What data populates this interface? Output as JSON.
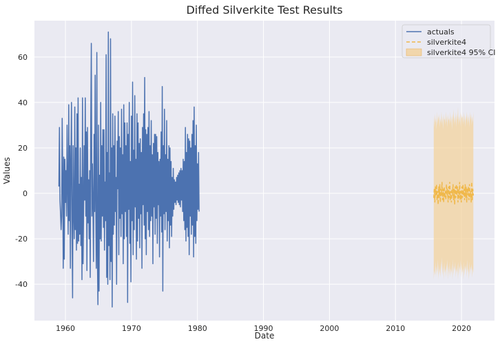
{
  "chart_data": {
    "type": "line",
    "title": "Diffed Silverkite Test Results",
    "xlabel": "Date",
    "ylabel": "Values",
    "xlim": [
      1955.3,
      2025.0
    ],
    "ylim": [
      -56,
      76
    ],
    "x_ticks": [
      1960,
      1970,
      1980,
      1990,
      2000,
      2010,
      2020
    ],
    "y_ticks": [
      -40,
      -20,
      0,
      20,
      40,
      60
    ],
    "grid": true,
    "legend_placement": "top-right",
    "colors": {
      "plot_background": "#EAEAF2",
      "grid": "#FFFFFF",
      "actuals": "#4C72B0",
      "forecast": "#F0B84A",
      "ci_fill": "#F3D199"
    },
    "series": [
      {
        "name": "actuals",
        "style": "solid",
        "start_year": 1959.0,
        "step_years": 0.0833333,
        "values": [
          3,
          29,
          -3,
          -9,
          -16,
          -10,
          33,
          5,
          -33,
          16,
          -29,
          15,
          -4,
          10,
          -10,
          30,
          2,
          -18,
          39,
          -12,
          21,
          -33,
          15,
          40,
          -16,
          -46,
          21,
          -8,
          -20,
          38,
          -16,
          20,
          -25,
          35,
          -22,
          42,
          -21,
          4,
          -18,
          20,
          -23,
          7,
          -38,
          42,
          -31,
          -8,
          21,
          -3,
          42,
          -10,
          27,
          -34,
          29,
          -13,
          6,
          -20,
          10,
          -37,
          32,
          66,
          -10,
          13,
          -6,
          -30,
          26,
          -8,
          52,
          -5,
          -33,
          62,
          -27,
          -49,
          30,
          -43,
          8,
          -20,
          40,
          -21,
          21,
          -10,
          28,
          -15,
          28,
          -25,
          5,
          -12,
          61,
          -37,
          18,
          -40,
          71,
          -23,
          9,
          -38,
          68,
          -30,
          20,
          -50,
          35,
          -18,
          21,
          -14,
          34,
          -8,
          7,
          -40,
          23,
          2,
          36,
          -27,
          25,
          -11,
          20,
          -19,
          37,
          -9,
          17,
          -31,
          39,
          -20,
          31,
          -8,
          21,
          -19,
          31,
          -48,
          26,
          -7,
          40,
          -22,
          14,
          -39,
          34,
          -12,
          49,
          -27,
          19,
          -16,
          43,
          -6,
          15,
          -29,
          35,
          -21,
          31,
          -11,
          22,
          -24,
          24,
          -9,
          18,
          -33,
          29,
          -5,
          35,
          -14,
          51,
          -20,
          28,
          -27,
          26,
          -8,
          29,
          -16,
          36,
          -19,
          21,
          -12,
          32,
          -10,
          17,
          -31,
          22,
          -6,
          26,
          -18,
          26,
          -11,
          25,
          -22,
          18,
          -5,
          14,
          -28,
          15,
          -10,
          27,
          -17,
          47,
          -43,
          21,
          -9,
          37,
          -16,
          17,
          -8,
          32,
          -21,
          15,
          -12,
          21,
          -24,
          20,
          -14,
          14,
          -19,
          7,
          -10,
          11,
          -7,
          6,
          -4,
          5,
          -5,
          7,
          -3,
          8,
          -4,
          9,
          -5,
          10,
          -6,
          11,
          -3,
          10,
          -8,
          15,
          -12,
          14,
          -16,
          29,
          -21,
          18,
          -15,
          26,
          -19,
          24,
          -27,
          23,
          -10,
          20,
          -18,
          26,
          -14,
          32,
          -28,
          38,
          -19,
          21,
          -22,
          30,
          -12,
          13,
          -7,
          18,
          -8
        ]
      },
      {
        "name": "silverkite4",
        "style": "dashed",
        "start_year": 2015.8,
        "step_years": 0.0833333,
        "values": [
          -2,
          2,
          -4,
          3,
          -1,
          4,
          -3,
          1,
          -5,
          3,
          -2,
          4,
          -4,
          2,
          -1,
          5,
          -3,
          2,
          -4,
          3,
          -2,
          1,
          -3,
          4,
          -1,
          2,
          -4,
          3,
          -2,
          5,
          -3,
          1,
          -4,
          2,
          -1,
          4,
          -3,
          2,
          -5,
          3,
          -2,
          4,
          -1,
          3,
          -4,
          2,
          -2,
          5,
          -3,
          1,
          -4,
          3,
          -2,
          4,
          -1,
          2,
          -3,
          4,
          -2,
          3,
          -4,
          2,
          -1,
          3,
          -3,
          4,
          -2,
          1,
          -4,
          5,
          -3,
          2,
          -1
        ]
      },
      {
        "name": "silverkite4 95% CI",
        "style": "band",
        "start_year": 2015.8,
        "step_years": 0.0833333,
        "lower": [
          -38,
          -34,
          -36,
          -30,
          -37,
          -32,
          -35,
          -29,
          -38,
          -31,
          -36,
          -33,
          -37,
          -30,
          -34,
          -28,
          -36,
          -32,
          -38,
          -30,
          -35,
          -33,
          -37,
          -31,
          -34,
          -29,
          -38,
          -32,
          -36,
          -30,
          -37,
          -33,
          -35,
          -31,
          -38,
          -29,
          -36,
          -32,
          -34,
          -30,
          -37,
          -33,
          -35,
          -31,
          -38,
          -30,
          -36,
          -32,
          -34,
          -29,
          -37,
          -31,
          -35,
          -33,
          -38,
          -30,
          -36,
          -32,
          -34,
          -31,
          -37,
          -29,
          -35,
          -33,
          -38,
          -30,
          -36,
          -32,
          -34,
          -31,
          -37,
          -33,
          -35
        ],
        "upper": [
          34,
          29,
          35,
          31,
          33,
          28,
          36,
          30,
          34,
          32,
          35,
          29,
          33,
          31,
          36,
          30,
          34,
          28,
          35,
          32,
          33,
          30,
          36,
          31,
          34,
          29,
          35,
          32,
          33,
          30,
          36,
          31,
          34,
          28,
          35,
          32,
          37,
          30,
          34,
          31,
          36,
          29,
          35,
          32,
          38,
          30,
          34,
          31,
          36,
          29,
          35,
          33,
          34,
          30,
          36,
          31,
          35,
          29,
          34,
          32,
          36,
          30,
          35,
          31,
          34,
          29,
          36,
          32,
          35,
          30,
          34,
          31,
          36
        ]
      }
    ]
  }
}
